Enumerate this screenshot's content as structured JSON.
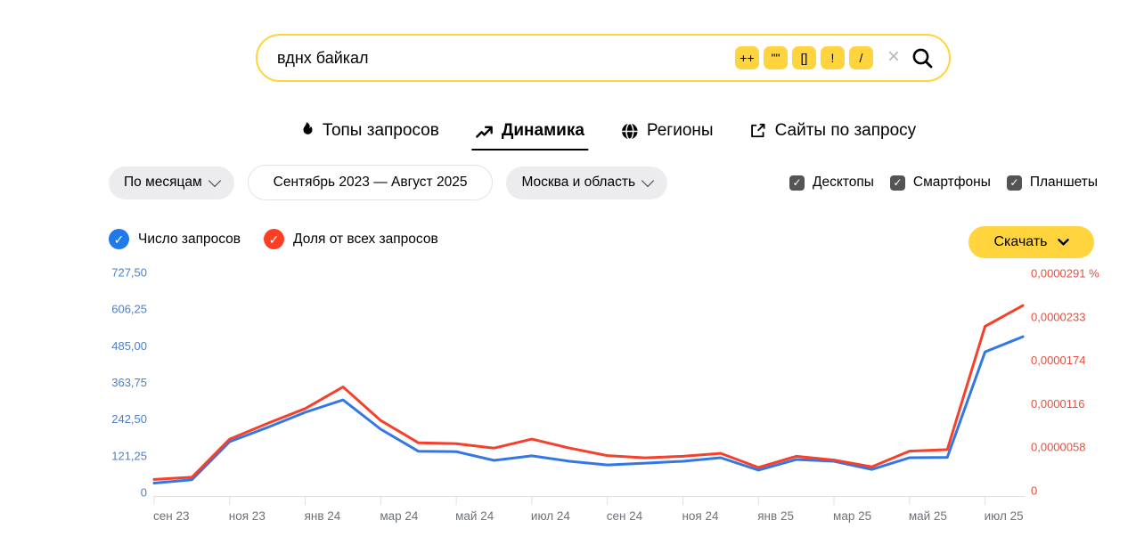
{
  "search": {
    "query": "вднх байкал",
    "operators": [
      "++",
      "\"\"",
      "[]",
      "!",
      "/"
    ],
    "clear_label": "×"
  },
  "tabs": [
    {
      "label": "Топы запросов",
      "icon": "flame-icon",
      "active": false
    },
    {
      "label": "Динамика",
      "icon": "trend-icon",
      "active": true
    },
    {
      "label": "Регионы",
      "icon": "globe-icon",
      "active": false
    },
    {
      "label": "Сайты по запросу",
      "icon": "external-link-icon",
      "active": false
    }
  ],
  "filters": {
    "grouping": "По месяцам",
    "date_range": "Сентябрь 2023 — Август 2025",
    "region": "Москва и область"
  },
  "devices": [
    {
      "label": "Десктопы",
      "checked": true
    },
    {
      "label": "Смартфоны",
      "checked": true
    },
    {
      "label": "Планшеты",
      "checked": true
    }
  ],
  "legend": [
    {
      "label": "Число запросов",
      "color": "#2079e8",
      "check": "✓"
    },
    {
      "label": "Доля от всех запросов",
      "color": "#fb3f24",
      "check": "✓"
    }
  ],
  "download": {
    "label": "Скачать"
  },
  "chart_data": {
    "type": "line",
    "categories": [
      "сен 23",
      "окт 23",
      "ноя 23",
      "дек 23",
      "янв 24",
      "фев 24",
      "мар 24",
      "апр 24",
      "май 24",
      "июн 24",
      "июл 24",
      "авг 24",
      "сен 24",
      "окт 24",
      "ноя 24",
      "дек 24",
      "янв 25",
      "фев 25",
      "мар 25",
      "апр 25",
      "май 25",
      "июн 25",
      "июл 25",
      "авг 25"
    ],
    "x_tick_labels": [
      "сен 23",
      "ноя 23",
      "янв 24",
      "мар 24",
      "май 24",
      "июл 24",
      "сен 24",
      "ноя 24",
      "янв 25",
      "мар 25",
      "май 25",
      "июл 25"
    ],
    "series": [
      {
        "name": "Число запросов",
        "axis": "left",
        "color": "#3377e6",
        "values": [
          31,
          42,
          168,
          215,
          265,
          306,
          209,
          136,
          135,
          106,
          121,
          103,
          91,
          97,
          103,
          115,
          74,
          109,
          103,
          76,
          115,
          116,
          465,
          515
        ]
      },
      {
        "name": "Доля от всех запросов",
        "axis": "right",
        "color": "#f5402c",
        "values": [
          1.5e-06,
          1.8e-06,
          6.9e-06,
          9e-06,
          1.1e-05,
          1.39e-05,
          9.4e-06,
          6.4e-06,
          6.3e-06,
          5.7e-06,
          6.9e-06,
          5.7e-06,
          4.7e-06,
          4.4e-06,
          4.6e-06,
          5e-06,
          3.1e-06,
          4.6e-06,
          4.1e-06,
          3.2e-06,
          5.3e-06,
          5.5e-06,
          2.2e-05,
          2.48e-05
        ]
      }
    ],
    "left_axis": {
      "tick_labels_top_down": [
        "727,50",
        "606,25",
        "485,00",
        "363,75",
        "242,50",
        "121,25",
        "0"
      ],
      "min": 0,
      "max": 727.5,
      "color": "#4e7fc4"
    },
    "right_axis": {
      "tick_labels_top_down": [
        "0,0000291 %",
        "0,0000233",
        "0,0000174",
        "0,0000116",
        "0,0000058",
        "0"
      ],
      "min": 0,
      "max": 2.91e-05,
      "color": "#e05243"
    },
    "grid": false,
    "legend_position": "top-left"
  }
}
